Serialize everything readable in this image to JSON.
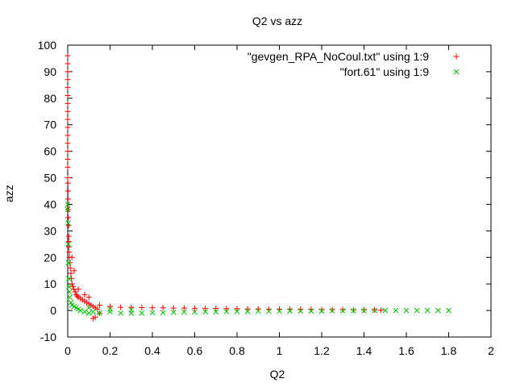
{
  "chart_data": {
    "type": "scatter",
    "title": "Q2 vs azz",
    "xlabel": "Q2",
    "ylabel": "azz",
    "xlim": [
      0,
      2
    ],
    "ylim": [
      -10,
      100
    ],
    "x_ticks": [
      "0",
      "0.2",
      "0.4",
      "0.6",
      "0.8",
      "1",
      "1.2",
      "1.4",
      "1.6",
      "1.8",
      "2"
    ],
    "y_ticks": [
      "-10",
      "0",
      "10",
      "20",
      "30",
      "40",
      "50",
      "60",
      "70",
      "80",
      "90",
      "100"
    ],
    "grid": false,
    "legend_position": "top-right",
    "series": [
      {
        "name": "\"gevgen_RPA_NoCoul.txt\" using 1:9",
        "marker": "+",
        "color": "#ff0000",
        "points": [
          [
            0.0,
            96
          ],
          [
            0.0,
            93
          ],
          [
            0.0,
            90
          ],
          [
            0.0,
            87
          ],
          [
            0.0,
            84
          ],
          [
            0.0,
            81
          ],
          [
            0.0,
            78
          ],
          [
            0.0,
            75
          ],
          [
            0.0,
            72
          ],
          [
            0.0,
            69
          ],
          [
            0.0,
            66
          ],
          [
            0.0,
            63
          ],
          [
            0.0,
            60
          ],
          [
            0.0,
            57
          ],
          [
            0.0,
            54
          ],
          [
            0.0,
            50
          ],
          [
            0.001,
            48
          ],
          [
            0.002,
            45
          ],
          [
            0.002,
            42
          ],
          [
            0.003,
            38
          ],
          [
            0.003,
            35
          ],
          [
            0.004,
            32
          ],
          [
            0.005,
            28
          ],
          [
            0.005,
            26
          ],
          [
            0.006,
            24
          ],
          [
            0.007,
            22
          ],
          [
            0.008,
            20
          ],
          [
            0.01,
            18
          ],
          [
            0.012,
            16
          ],
          [
            0.015,
            14
          ],
          [
            0.018,
            12
          ],
          [
            0.02,
            10
          ],
          [
            0.025,
            9
          ],
          [
            0.03,
            8
          ],
          [
            0.035,
            7
          ],
          [
            0.04,
            6
          ],
          [
            0.045,
            5.5
          ],
          [
            0.05,
            5
          ],
          [
            0.06,
            4.5
          ],
          [
            0.07,
            4
          ],
          [
            0.08,
            3.5
          ],
          [
            0.09,
            3
          ],
          [
            0.1,
            2.5
          ],
          [
            0.11,
            2
          ],
          [
            0.12,
            1.5
          ],
          [
            0.13,
            1
          ],
          [
            0.14,
            0.5
          ],
          [
            0.15,
            -1
          ],
          [
            0.13,
            -2.5
          ],
          [
            0.12,
            -3
          ],
          [
            0.02,
            20
          ],
          [
            0.03,
            15
          ],
          [
            0.05,
            8
          ],
          [
            0.08,
            6
          ],
          [
            0.1,
            5
          ],
          [
            0.15,
            2
          ],
          [
            0.2,
            1.5
          ],
          [
            0.25,
            1.2
          ],
          [
            0.3,
            1.2
          ],
          [
            0.35,
            1.1
          ],
          [
            0.4,
            1.0
          ],
          [
            0.45,
            1.0
          ],
          [
            0.5,
            0.9
          ],
          [
            0.55,
            0.9
          ],
          [
            0.6,
            0.8
          ],
          [
            0.65,
            0.8
          ],
          [
            0.7,
            0.8
          ],
          [
            0.75,
            0.7
          ],
          [
            0.8,
            0.7
          ],
          [
            0.85,
            0.6
          ],
          [
            0.9,
            0.6
          ],
          [
            0.95,
            0.5
          ],
          [
            1.0,
            0.5
          ],
          [
            1.05,
            0.5
          ],
          [
            1.1,
            0.4
          ],
          [
            1.15,
            0.4
          ],
          [
            1.2,
            0.3
          ],
          [
            1.25,
            0.3
          ],
          [
            1.3,
            0.3
          ],
          [
            1.35,
            0.2
          ],
          [
            1.4,
            0.2
          ],
          [
            1.45,
            0.2
          ],
          [
            1.48,
            0.1
          ]
        ]
      },
      {
        "name": "\"fort.61\" using 1:9",
        "marker": "x",
        "color": "#00c000",
        "points": [
          [
            0.0,
            40
          ],
          [
            0.0,
            38
          ],
          [
            0.002,
            33
          ],
          [
            0.003,
            25
          ],
          [
            0.004,
            18
          ],
          [
            0.005,
            12
          ],
          [
            0.006,
            9
          ],
          [
            0.008,
            7
          ],
          [
            0.01,
            5
          ],
          [
            0.015,
            3
          ],
          [
            0.02,
            2
          ],
          [
            0.03,
            1.5
          ],
          [
            0.04,
            1
          ],
          [
            0.05,
            0.5
          ],
          [
            0.06,
            0
          ],
          [
            0.08,
            -0.5
          ],
          [
            0.1,
            -1
          ],
          [
            0.12,
            -0.5
          ],
          [
            0.15,
            -1
          ],
          [
            0.2,
            -0.5
          ],
          [
            0.25,
            -1
          ],
          [
            0.3,
            -1
          ],
          [
            0.35,
            -1
          ],
          [
            0.4,
            -0.8
          ],
          [
            0.45,
            -0.8
          ],
          [
            0.5,
            -0.7
          ],
          [
            0.55,
            -0.6
          ],
          [
            0.6,
            -0.6
          ],
          [
            0.65,
            -0.5
          ],
          [
            0.7,
            -0.5
          ],
          [
            0.75,
            -0.4
          ],
          [
            0.8,
            -0.4
          ],
          [
            0.85,
            -0.4
          ],
          [
            0.9,
            -0.3
          ],
          [
            0.95,
            -0.3
          ],
          [
            1.0,
            -0.3
          ],
          [
            1.05,
            -0.2
          ],
          [
            1.1,
            -0.2
          ],
          [
            1.15,
            -0.2
          ],
          [
            1.2,
            -0.2
          ],
          [
            1.25,
            -0.1
          ],
          [
            1.3,
            -0.1
          ],
          [
            1.35,
            -0.1
          ],
          [
            1.4,
            -0.1
          ],
          [
            1.45,
            0
          ],
          [
            1.5,
            0
          ],
          [
            1.55,
            0
          ],
          [
            1.6,
            0
          ],
          [
            1.65,
            0
          ],
          [
            1.7,
            0
          ],
          [
            1.75,
            0
          ],
          [
            1.8,
            0
          ],
          [
            0.1,
            1
          ],
          [
            0.2,
            0.5
          ],
          [
            0.3,
            0.2
          ]
        ]
      }
    ]
  }
}
